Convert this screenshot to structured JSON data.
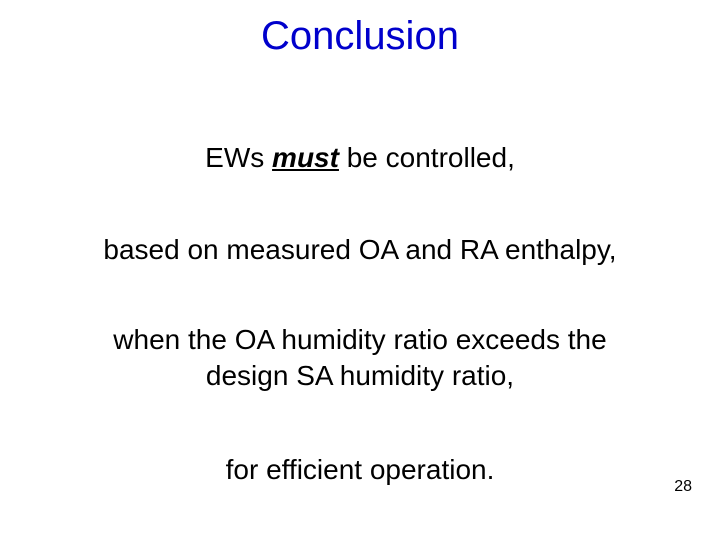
{
  "slide": {
    "title": "Conclusion",
    "title_color": "#0000cc",
    "title_fontsize": 40,
    "body_fontsize": 28,
    "body_color": "#000000",
    "background_color": "#ffffff",
    "lines": {
      "l1_pre": "EWs ",
      "l1_em": "must",
      "l1_post": " be controlled,",
      "l2": "based on measured OA and RA enthalpy,",
      "l3": "when the OA humidity ratio exceeds the",
      "l4": "design SA humidity ratio,",
      "l5": "for efficient operation."
    },
    "page_number": "28"
  }
}
